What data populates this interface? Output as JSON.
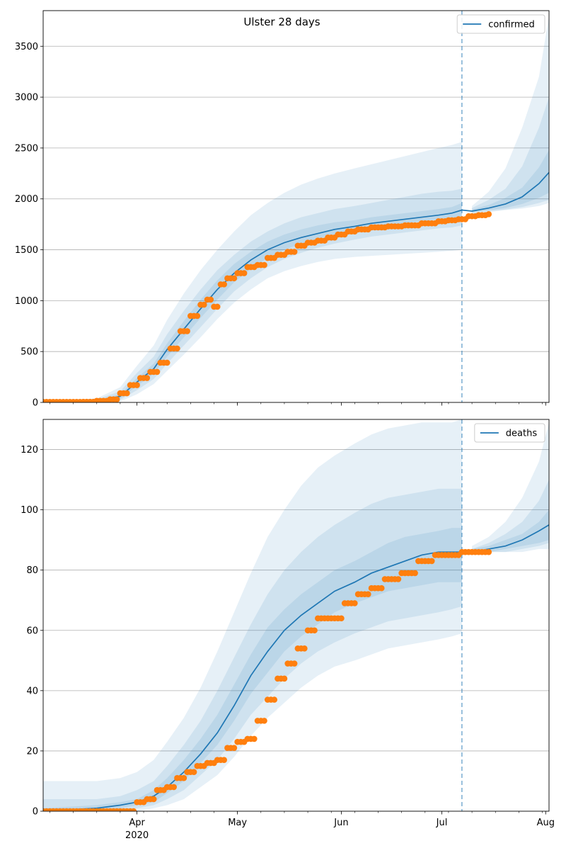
{
  "title": "Ulster 28 days",
  "chart_data": [
    {
      "id": "confirmed-panel",
      "type": "line",
      "title": "Ulster 28 days",
      "series_name": "confirmed",
      "legend_position": "top-right",
      "grid": "y",
      "xlim": [
        "2020-03-04",
        "2020-08-02"
      ],
      "ylim": [
        0,
        3850
      ],
      "yticks": [
        0,
        500,
        1000,
        1500,
        2000,
        2500,
        3000,
        3500
      ],
      "vline_date": "2020-07-07",
      "forecast": {
        "x": [
          "2020-03-04",
          "2020-03-20",
          "2020-03-27",
          "2020-04-01",
          "2020-04-06",
          "2020-04-10",
          "2020-04-15",
          "2020-04-20",
          "2020-04-25",
          "2020-04-30",
          "2020-05-05",
          "2020-05-10",
          "2020-05-15",
          "2020-05-20",
          "2020-05-25",
          "2020-05-30",
          "2020-06-05",
          "2020-06-10",
          "2020-06-15",
          "2020-06-20",
          "2020-06-25",
          "2020-06-30",
          "2020-07-04",
          "2020-07-07",
          "2020-07-10",
          "2020-07-15",
          "2020-07-20",
          "2020-07-25",
          "2020-07-30",
          "2020-08-02"
        ],
        "median": [
          0,
          15,
          60,
          200,
          330,
          520,
          720,
          920,
          1110,
          1270,
          1400,
          1500,
          1570,
          1620,
          1660,
          1700,
          1730,
          1760,
          1780,
          1800,
          1820,
          1840,
          1860,
          1890,
          1880,
          1910,
          1950,
          2020,
          2150,
          2260
        ],
        "band50_low": [
          0,
          10,
          40,
          160,
          280,
          450,
          640,
          830,
          1010,
          1180,
          1310,
          1420,
          1500,
          1560,
          1610,
          1650,
          1690,
          1720,
          1740,
          1760,
          1780,
          1800,
          1810,
          1820,
          1870,
          1890,
          1910,
          1950,
          2010,
          2060
        ],
        "band50_high": [
          0,
          20,
          80,
          240,
          380,
          580,
          800,
          1010,
          1200,
          1360,
          1480,
          1580,
          1650,
          1700,
          1740,
          1770,
          1790,
          1820,
          1840,
          1860,
          1880,
          1900,
          1920,
          1960,
          1895,
          1940,
          2010,
          2110,
          2310,
          2480
        ],
        "band80_low": [
          0,
          5,
          25,
          120,
          230,
          380,
          560,
          740,
          920,
          1090,
          1220,
          1330,
          1410,
          1470,
          1520,
          1560,
          1600,
          1630,
          1650,
          1670,
          1690,
          1710,
          1720,
          1740,
          1860,
          1880,
          1895,
          1920,
          1960,
          1990
        ],
        "band80_high": [
          0,
          30,
          110,
          290,
          450,
          670,
          900,
          1110,
          1300,
          1450,
          1580,
          1680,
          1760,
          1820,
          1860,
          1900,
          1930,
          1960,
          1990,
          2020,
          2050,
          2070,
          2080,
          2100,
          1910,
          1990,
          2100,
          2320,
          2700,
          3000
        ],
        "band95_low": [
          0,
          0,
          10,
          80,
          180,
          310,
          470,
          640,
          820,
          980,
          1110,
          1220,
          1290,
          1340,
          1380,
          1410,
          1430,
          1440,
          1450,
          1460,
          1470,
          1480,
          1490,
          1500,
          1850,
          1870,
          1890,
          1905,
          1930,
          1960
        ],
        "band95_high": [
          0,
          40,
          150,
          360,
          560,
          810,
          1070,
          1300,
          1500,
          1680,
          1840,
          1960,
          2060,
          2140,
          2200,
          2250,
          2300,
          2340,
          2380,
          2420,
          2460,
          2500,
          2530,
          2560,
          1930,
          2070,
          2300,
          2700,
          3200,
          3800
        ]
      },
      "observed": {
        "x": [
          "2020-03-04",
          "2020-03-10",
          "2020-03-16",
          "2020-03-20",
          "2020-03-24",
          "2020-03-27",
          "2020-03-30",
          "2020-04-02",
          "2020-04-05",
          "2020-04-08",
          "2020-04-11",
          "2020-04-14",
          "2020-04-17",
          "2020-04-20",
          "2020-04-22",
          "2020-04-24",
          "2020-04-26",
          "2020-04-28",
          "2020-05-01",
          "2020-05-04",
          "2020-05-07",
          "2020-05-10",
          "2020-05-13",
          "2020-05-16",
          "2020-05-19",
          "2020-05-22",
          "2020-05-25",
          "2020-05-28",
          "2020-05-31",
          "2020-06-03",
          "2020-06-06",
          "2020-06-10",
          "2020-06-15",
          "2020-06-20",
          "2020-06-25",
          "2020-06-30",
          "2020-07-03",
          "2020-07-06",
          "2020-07-09",
          "2020-07-12",
          "2020-07-15"
        ],
        "y": [
          5,
          5,
          6,
          15,
          30,
          90,
          170,
          240,
          300,
          390,
          530,
          700,
          850,
          960,
          1010,
          940,
          1160,
          1220,
          1270,
          1330,
          1350,
          1420,
          1450,
          1480,
          1540,
          1570,
          1590,
          1620,
          1650,
          1680,
          1700,
          1720,
          1730,
          1740,
          1760,
          1780,
          1790,
          1800,
          1830,
          1840,
          1850
        ]
      }
    },
    {
      "id": "deaths-panel",
      "type": "line",
      "series_name": "deaths",
      "legend_position": "top-right",
      "grid": "y",
      "xlim": [
        "2020-03-04",
        "2020-08-02"
      ],
      "ylim": [
        0,
        130
      ],
      "yticks": [
        0,
        20,
        40,
        60,
        80,
        100,
        120
      ],
      "xticks": [
        {
          "date": "2020-04-01",
          "label": "Apr"
        },
        {
          "date": "2020-05-01",
          "label": "May"
        },
        {
          "date": "2020-06-01",
          "label": "Jun"
        },
        {
          "date": "2020-07-01",
          "label": "Jul"
        },
        {
          "date": "2020-08-01",
          "label": "Aug"
        }
      ],
      "year_label": "2020",
      "vline_date": "2020-07-07",
      "forecast": {
        "x": [
          "2020-03-04",
          "2020-03-20",
          "2020-03-27",
          "2020-04-01",
          "2020-04-06",
          "2020-04-10",
          "2020-04-15",
          "2020-04-20",
          "2020-04-25",
          "2020-04-30",
          "2020-05-05",
          "2020-05-10",
          "2020-05-15",
          "2020-05-20",
          "2020-05-25",
          "2020-05-30",
          "2020-06-05",
          "2020-06-10",
          "2020-06-15",
          "2020-06-20",
          "2020-06-25",
          "2020-06-30",
          "2020-07-04",
          "2020-07-07",
          "2020-07-10",
          "2020-07-15",
          "2020-07-20",
          "2020-07-25",
          "2020-07-30",
          "2020-08-02"
        ],
        "median": [
          0,
          1,
          2,
          3,
          5,
          8,
          13,
          19,
          26,
          35,
          45,
          53,
          60,
          65,
          69,
          73,
          76,
          79,
          81,
          83,
          85,
          86,
          86,
          86,
          86,
          87,
          88,
          90,
          93,
          95
        ],
        "band50_low": [
          0,
          0,
          1,
          2,
          3,
          6,
          10,
          16,
          22,
          30,
          39,
          46,
          53,
          58,
          62,
          66,
          69,
          71,
          73,
          74,
          75,
          76,
          76,
          76,
          86,
          86,
          87,
          88,
          89,
          90
        ],
        "band50_high": [
          1,
          2,
          3,
          4,
          7,
          11,
          17,
          24,
          32,
          42,
          52,
          61,
          67,
          72,
          76,
          80,
          83,
          86,
          89,
          91,
          92,
          93,
          94,
          94,
          87,
          88,
          90,
          92,
          96,
          100
        ],
        "band80_low": [
          0,
          0,
          0,
          1,
          2,
          4,
          7,
          12,
          17,
          24,
          32,
          38,
          44,
          49,
          53,
          56,
          59,
          61,
          63,
          64,
          65,
          66,
          67,
          68,
          86,
          86,
          86,
          87,
          88,
          89
        ],
        "band80_high": [
          4,
          4,
          5,
          7,
          10,
          15,
          22,
          30,
          40,
          51,
          62,
          72,
          80,
          86,
          91,
          95,
          99,
          102,
          104,
          105,
          106,
          107,
          107,
          107,
          87,
          89,
          92,
          96,
          103,
          110
        ],
        "band95_low": [
          0,
          0,
          0,
          0,
          1,
          2,
          4,
          8,
          12,
          18,
          25,
          31,
          36,
          41,
          45,
          48,
          50,
          52,
          54,
          55,
          56,
          57,
          58,
          59,
          86,
          86,
          86,
          86,
          87,
          87
        ],
        "band95_high": [
          10,
          10,
          11,
          13,
          17,
          23,
          31,
          41,
          53,
          66,
          79,
          91,
          100,
          108,
          114,
          118,
          122,
          125,
          127,
          128,
          129,
          129,
          129,
          130,
          88,
          91,
          96,
          104,
          116,
          129
        ]
      },
      "observed": {
        "x": [
          "2020-03-04",
          "2020-03-15",
          "2020-03-30",
          "2020-04-01",
          "2020-04-04",
          "2020-04-07",
          "2020-04-10",
          "2020-04-13",
          "2020-04-16",
          "2020-04-19",
          "2020-04-22",
          "2020-04-25",
          "2020-04-28",
          "2020-05-01",
          "2020-05-04",
          "2020-05-07",
          "2020-05-10",
          "2020-05-13",
          "2020-05-16",
          "2020-05-19",
          "2020-05-22",
          "2020-05-25",
          "2020-05-29",
          "2020-06-02",
          "2020-06-06",
          "2020-06-10",
          "2020-06-14",
          "2020-06-19",
          "2020-06-24",
          "2020-06-29",
          "2020-07-03",
          "2020-07-07",
          "2020-07-11",
          "2020-07-15"
        ],
        "y": [
          0,
          0,
          0,
          3,
          4,
          7,
          8,
          11,
          13,
          15,
          16,
          17,
          21,
          23,
          24,
          30,
          37,
          44,
          49,
          54,
          60,
          64,
          64,
          69,
          72,
          74,
          77,
          79,
          83,
          85,
          85,
          86,
          86,
          86
        ]
      }
    }
  ]
}
